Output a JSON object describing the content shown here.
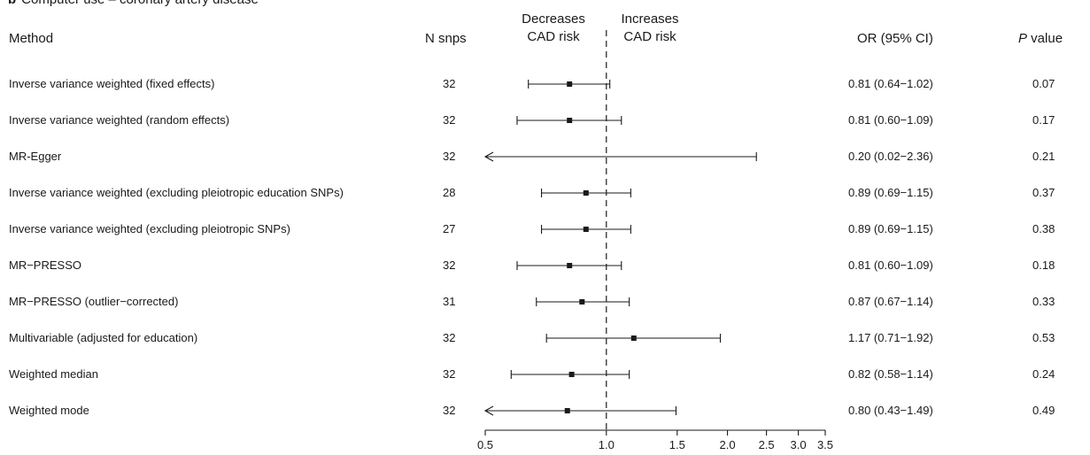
{
  "panel": {
    "letter": "b",
    "title": "Computer use – coronary artery disease"
  },
  "headers": {
    "method": "Method",
    "n_snps": "N snps",
    "decreases_line1": "Decreases",
    "decreases_line2": "CAD risk",
    "increases_line1": "Increases",
    "increases_line2": "CAD risk",
    "or_ci": "OR (95% CI)",
    "p_italic": "P",
    "p_rest": " value"
  },
  "colors": {
    "ink": "#1a1a1a"
  },
  "chart_data": {
    "type": "forest",
    "x_scale": "log",
    "reference_line": 1.0,
    "xlim": [
      0.5,
      3.5
    ],
    "xticks": [
      0.5,
      1.0,
      1.5,
      2.0,
      2.5,
      3.0,
      3.5
    ],
    "xtick_labels": [
      "0.5",
      "1.0",
      "1.5",
      "2.0",
      "2.5",
      "3.0",
      "3.5"
    ],
    "rows": [
      {
        "method": "Inverse variance weighted (fixed effects)",
        "n_snps": "32",
        "or": 0.81,
        "lower": 0.64,
        "upper": 1.02,
        "or_text": "0.81 (0.64−1.02)",
        "p": "0.07"
      },
      {
        "method": "Inverse variance weighted (random effects)",
        "n_snps": "32",
        "or": 0.81,
        "lower": 0.6,
        "upper": 1.09,
        "or_text": "0.81 (0.60−1.09)",
        "p": "0.17"
      },
      {
        "method": "MR-Egger",
        "n_snps": "32",
        "or": 0.2,
        "lower": 0.02,
        "upper": 2.36,
        "or_text": "0.20 (0.02−2.36)",
        "p": "0.21"
      },
      {
        "method": "Inverse variance weighted (excluding pleiotropic education SNPs)",
        "n_snps": "28",
        "or": 0.89,
        "lower": 0.69,
        "upper": 1.15,
        "or_text": "0.89 (0.69−1.15)",
        "p": "0.37"
      },
      {
        "method": "Inverse variance weighted (excluding pleiotropic SNPs)",
        "n_snps": "27",
        "or": 0.89,
        "lower": 0.69,
        "upper": 1.15,
        "or_text": "0.89 (0.69−1.15)",
        "p": "0.38"
      },
      {
        "method": "MR−PRESSO",
        "n_snps": "32",
        "or": 0.81,
        "lower": 0.6,
        "upper": 1.09,
        "or_text": "0.81 (0.60−1.09)",
        "p": "0.18"
      },
      {
        "method": "MR−PRESSO (outlier−corrected)",
        "n_snps": "31",
        "or": 0.87,
        "lower": 0.67,
        "upper": 1.14,
        "or_text": "0.87 (0.67−1.14)",
        "p": "0.33"
      },
      {
        "method": "Multivariable (adjusted for education)",
        "n_snps": "32",
        "or": 1.17,
        "lower": 0.71,
        "upper": 1.92,
        "or_text": "1.17 (0.71−1.92)",
        "p": "0.53"
      },
      {
        "method": "Weighted median",
        "n_snps": "32",
        "or": 0.82,
        "lower": 0.58,
        "upper": 1.14,
        "or_text": "0.82 (0.58−1.14)",
        "p": "0.24"
      },
      {
        "method": "Weighted mode",
        "n_snps": "32",
        "or": 0.8,
        "lower": 0.43,
        "upper": 1.49,
        "or_text": "0.80 (0.43−1.49)",
        "p": "0.49"
      }
    ]
  }
}
